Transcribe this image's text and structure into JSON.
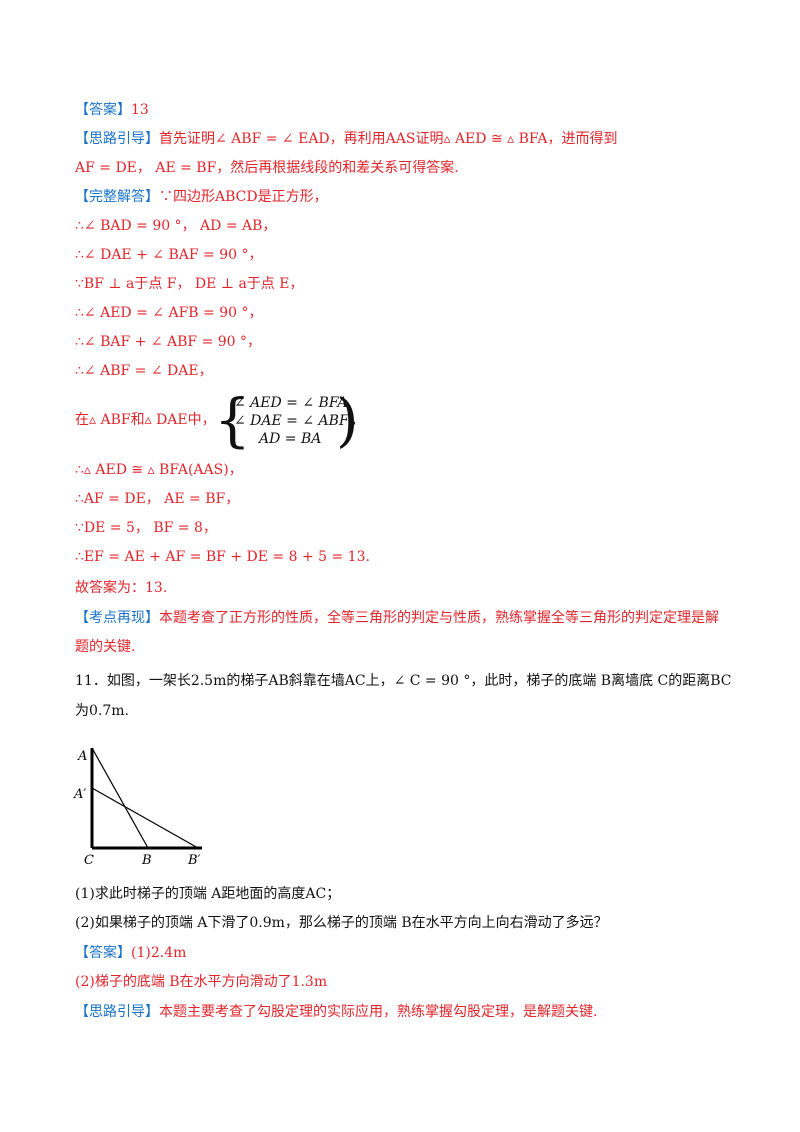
{
  "lines": {
    "l1": {
      "tag": "【答案】",
      "text": "13"
    },
    "l2": {
      "tag": "【思路引导】",
      "text": "首先证明∠ ABF = ∠ EAD，再利用AAS证明▵ AED ≅ ▵ BFA，进而得到"
    },
    "l3": {
      "text": "AF = DE， AE = BF，然后再根据线段的和差关系可得答案."
    },
    "l4": {
      "tag": "【完整解答】",
      "text": "∵四边形ABCD是正方形，"
    },
    "l5": {
      "text": "∴∠ BAD = 90 °， AD = AB，"
    },
    "l6": {
      "text": "∴∠ DAE + ∠ BAF = 90 °，"
    },
    "l7": {
      "text": "∵BF ⊥ a于点 F， DE ⊥ a于点 E，"
    },
    "l8": {
      "text": "∴∠ AED = ∠ AFB = 90 °，"
    },
    "l9": {
      "text": "∴∠ BAF + ∠ ABF = 90 °，"
    },
    "l10": {
      "text": "∴∠ ABF = ∠ DAE，"
    },
    "l11": {
      "text": "在▵ ABF和▵ DAE中，"
    },
    "system": {
      "r1": "∠ AED = ∠ BFA",
      "r2": "∠ DAE = ∠ ABF",
      "r3": "AD = BA",
      "brace_l": "{",
      "brace_r": ")",
      "tail": "，"
    },
    "l12": {
      "text": "∴▵ AED ≅ ▵ BFA(AAS)，"
    },
    "l13": {
      "text": "∴AF = DE， AE = BF，"
    },
    "l14": {
      "text": "∵DE = 5， BF = 8，"
    },
    "l15": {
      "text": "∴EF = AE + AF = BF + DE = 8 + 5 = 13."
    },
    "l16": {
      "text": "故答案为：13."
    },
    "l17": {
      "tag": "【考点再现】",
      "text": "本题考查了正方形的性质，全等三角形的判定与性质，熟练掌握全等三角形的判定定理是解"
    },
    "l18": {
      "text": "题的关键."
    },
    "l19": {
      "text": "11．如图，一架长2.5m的梯子AB斜靠在墙AC上，∠ C = 90 °，此时，梯子的底端 B离墙底 C的距离BC"
    },
    "l20": {
      "text": "为0.7m."
    },
    "l21": {
      "text": "(1)求此时梯子的顶端 A距地面的高度AC；"
    },
    "l22": {
      "text": "(2)如果梯子的顶端 A下滑了0.9m，那么梯子的顶端 B在水平方向上向右滑动了多远？"
    },
    "l23": {
      "tag": "【答案】",
      "text": "(1)2.4m"
    },
    "l24": {
      "text": "(2)梯子的底端 B在水平方向滑动了1.3m"
    },
    "l25": {
      "tag": "【思路引导】",
      "text": "本题主要考查了勾股定理的实际应用，熟练掌握勾股定理，是解题关键."
    }
  },
  "diagram": {
    "A": "A",
    "A1": "A′",
    "C": "C",
    "B": "B",
    "B1": "B′"
  }
}
